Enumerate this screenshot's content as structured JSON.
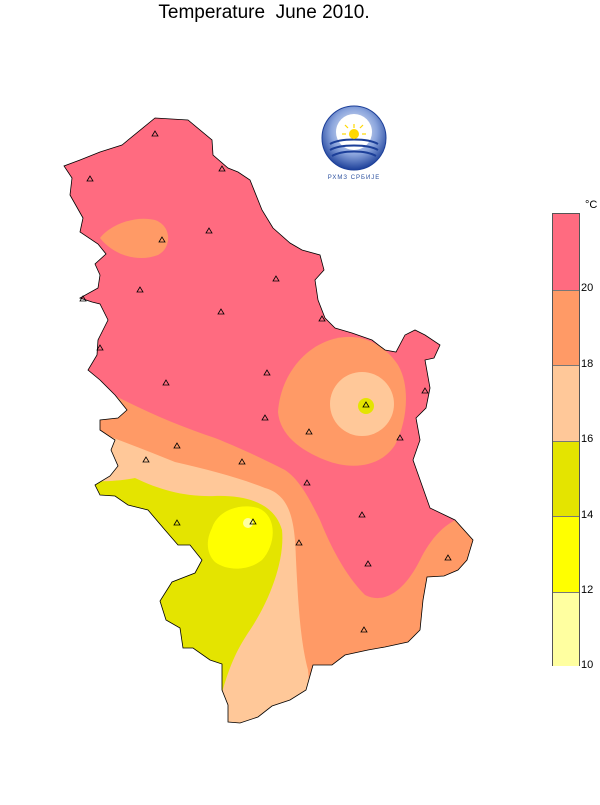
{
  "title": "Temperature  June 2010.",
  "logo": {
    "name": "rhmz-logo",
    "text": "РХМЗ СРБИЈЕ"
  },
  "legend": {
    "unit": "°C",
    "ticks": [
      "20",
      "18",
      "16",
      "14",
      "12",
      "10"
    ],
    "bands": [
      {
        "range": [
          20,
          22
        ],
        "color": "#ff6b80"
      },
      {
        "range": [
          18,
          20
        ],
        "color": "#ff9a66"
      },
      {
        "range": [
          16,
          18
        ],
        "color": "#ffc899"
      },
      {
        "range": [
          14,
          16
        ],
        "color": "#e4e400"
      },
      {
        "range": [
          12,
          14
        ],
        "color": "#ffff00"
      },
      {
        "range": [
          10,
          12
        ],
        "color": "#ffffa0"
      }
    ]
  },
  "map": {
    "region": "Serbia",
    "variable": "temperature",
    "stations_count": 27
  }
}
